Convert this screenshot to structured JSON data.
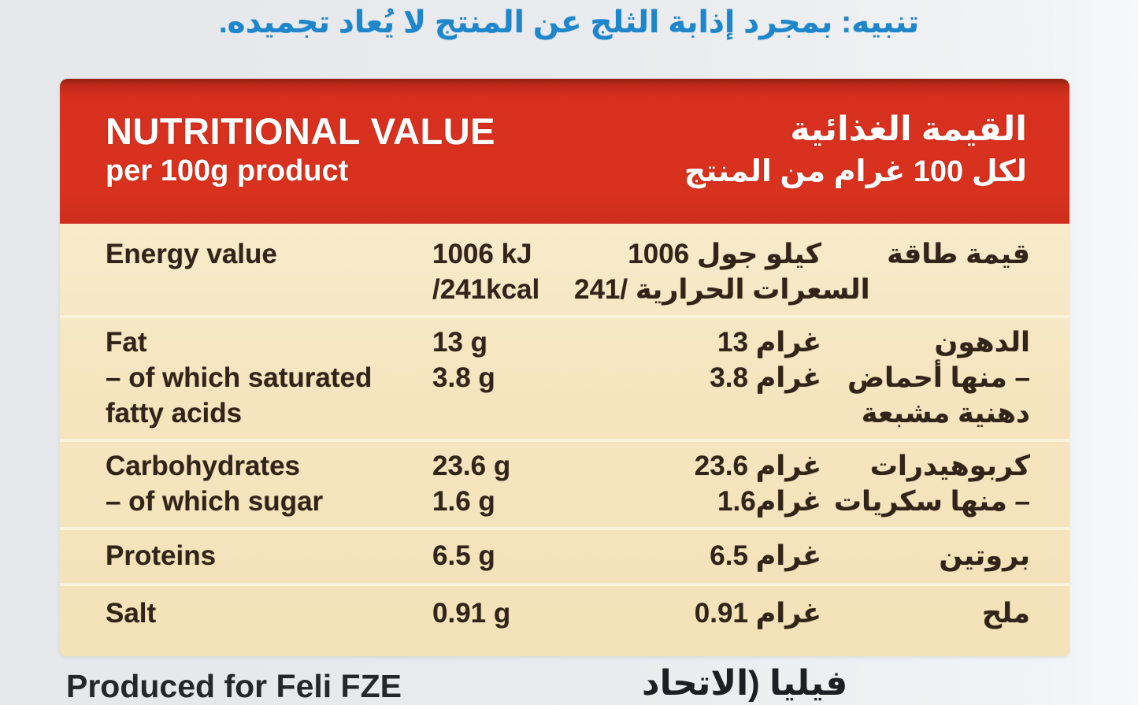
{
  "notice": {
    "text_ar": "تنبيه: بمجرد إذابة الثلج عن المنتج لا يُعاد تجميده."
  },
  "header": {
    "title_en": "NUTRITIONAL VALUE",
    "subtitle_en": "per 100g product",
    "title_ar": "القيمة الغذائية",
    "subtitle_ar": "لكل 100 غرام من المنتج"
  },
  "table": {
    "rows": [
      {
        "name_en": [
          "Energy value"
        ],
        "val_en": [
          "1006 kJ",
          "/241kcal"
        ],
        "val_ar": [
          "1006 كيلو جول",
          "السعرات الحرارية /241"
        ],
        "name_ar": [
          "قيمة طاقة"
        ]
      },
      {
        "name_en": [
          "Fat",
          "– of which saturated",
          "fatty acids"
        ],
        "val_en": [
          "13 g",
          "3.8 g"
        ],
        "val_ar": [
          "13 غرام",
          "3.8 غرام"
        ],
        "name_ar": [
          "الدهون",
          "– منها أحماض",
          "دهنية مشبعة"
        ]
      },
      {
        "name_en": [
          "Carbohydrates",
          "– of which sugar"
        ],
        "val_en": [
          "23.6 g",
          "1.6 g"
        ],
        "val_ar": [
          "23.6 غرام",
          "1.6غرام"
        ],
        "name_ar": [
          "كربوهيدرات",
          "– منها سكريات"
        ]
      },
      {
        "name_en": [
          "Proteins"
        ],
        "val_en": [
          "6.5 g"
        ],
        "val_ar": [
          "6.5 غرام"
        ],
        "name_ar": [
          "بروتين"
        ]
      },
      {
        "name_en": [
          "Salt"
        ],
        "val_en": [
          "0.91 g"
        ],
        "val_ar": [
          "0.91 غرام"
        ],
        "name_ar": [
          "ملح"
        ]
      }
    ]
  },
  "footer": {
    "left_en": "Produced for Feli FZE",
    "right_ar": "فيليا (الاتحاد"
  },
  "colors": {
    "header_red": "#d7301f",
    "panel_cream": "#f5e5bf",
    "notice_blue": "#1e86c9",
    "text_ink": "#33241a"
  }
}
